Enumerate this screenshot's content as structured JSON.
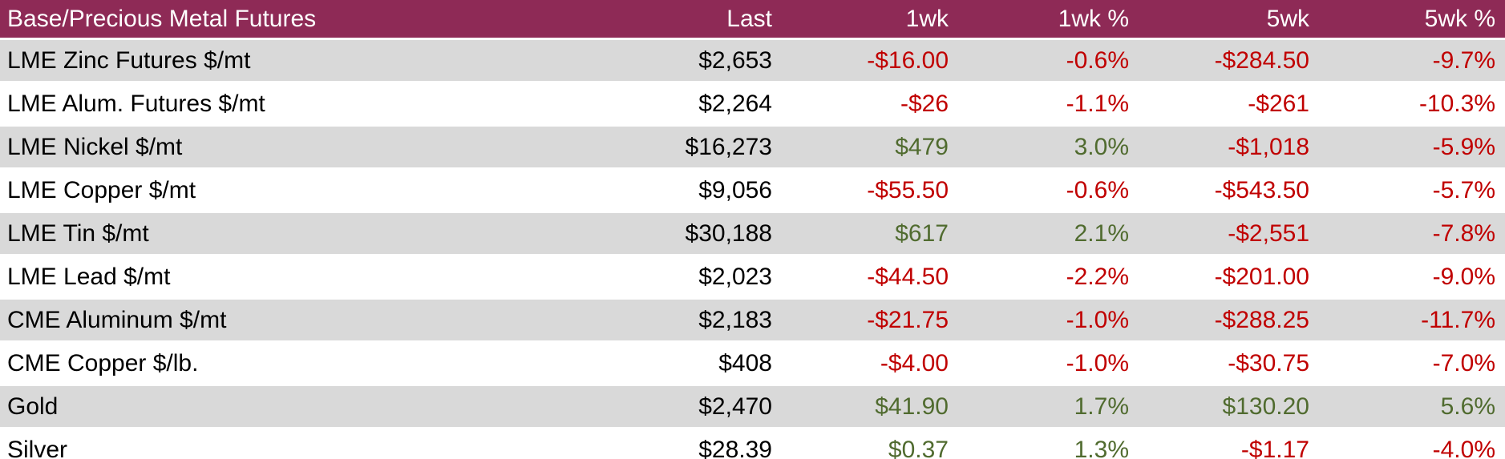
{
  "header": {
    "title": "Base/Precious Metal Futures",
    "columns": [
      "Last",
      "1wk",
      "1wk %",
      "5wk",
      "5wk %"
    ]
  },
  "colors": {
    "header_bg": "#8E2A56",
    "header_text": "#FFFFFF",
    "row_stripe": "#D9D9D9",
    "row_white": "#FFFFFF",
    "negative_text": "#C00000",
    "positive_text": "#506B2F",
    "last_text": "#000000",
    "bottom_border": "#000000"
  },
  "chart_data": {
    "type": "table",
    "title": "Base/Precious Metal Futures",
    "columns": [
      "Base/Precious Metal Futures",
      "Last",
      "1wk",
      "1wk %",
      "5wk",
      "5wk %"
    ],
    "rows": [
      [
        "LME Zinc Futures $/mt",
        "$2,653",
        "-$16.00",
        "-0.6%",
        "-$284.50",
        "-9.7%"
      ],
      [
        "LME Alum. Futures $/mt",
        "$2,264",
        "-$26",
        "-1.1%",
        "-$261",
        "-10.3%"
      ],
      [
        "LME Nickel $/mt",
        "$16,273",
        "$479",
        "3.0%",
        "-$1,018",
        "-5.9%"
      ],
      [
        "LME Copper $/mt",
        "$9,056",
        "-$55.50",
        "-0.6%",
        "-$543.50",
        "-5.7%"
      ],
      [
        "LME Tin $/mt",
        "$30,188",
        "$617",
        "2.1%",
        "-$2,551",
        "-7.8%"
      ],
      [
        "LME Lead $/mt",
        "$2,023",
        "-$44.50",
        "-2.2%",
        "-$201.00",
        "-9.0%"
      ],
      [
        "CME Aluminum $/mt",
        "$2,183",
        "-$21.75",
        "-1.0%",
        "-$288.25",
        "-11.7%"
      ],
      [
        "CME Copper $/lb.",
        "$408",
        "-$4.00",
        "-1.0%",
        "-$30.75",
        "-7.0%"
      ],
      [
        "Gold",
        "$2,470",
        "$41.90",
        "1.7%",
        "$130.20",
        "5.6%"
      ],
      [
        "Silver",
        "$28.39",
        "$0.37",
        "1.3%",
        "-$1.17",
        "-4.0%"
      ]
    ]
  }
}
